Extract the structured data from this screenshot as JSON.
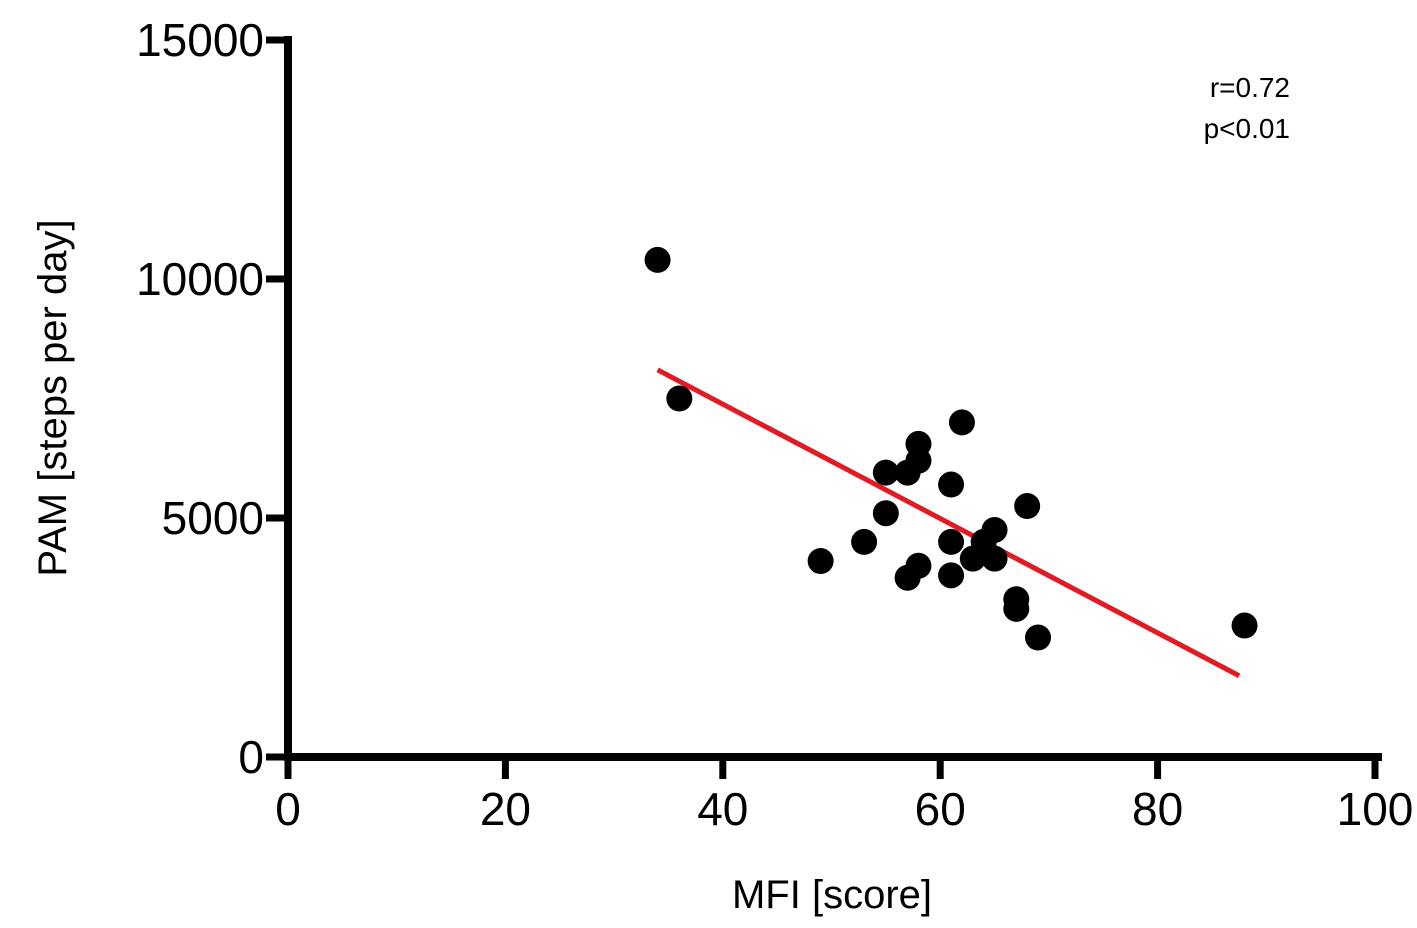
{
  "chart_data": {
    "type": "scatter",
    "title": "",
    "xlabel": "MFI [score]",
    "ylabel": "PAM [steps per day]",
    "xlim": [
      0,
      100
    ],
    "ylim": [
      0,
      15000
    ],
    "x_ticks": [
      "0",
      "20",
      "40",
      "60",
      "80",
      "100"
    ],
    "y_ticks": [
      "0",
      "5000",
      "10000",
      "15000"
    ],
    "grid": false,
    "legend": "none",
    "point_color": "#000000",
    "trend_color": "#e01b24",
    "points": [
      {
        "x": 34,
        "y": 10400
      },
      {
        "x": 36,
        "y": 7500
      },
      {
        "x": 49,
        "y": 4100
      },
      {
        "x": 53,
        "y": 4500
      },
      {
        "x": 55,
        "y": 5950
      },
      {
        "x": 55,
        "y": 5100
      },
      {
        "x": 57,
        "y": 5950
      },
      {
        "x": 57,
        "y": 3750
      },
      {
        "x": 58,
        "y": 6550
      },
      {
        "x": 58,
        "y": 6200
      },
      {
        "x": 58,
        "y": 4000
      },
      {
        "x": 61,
        "y": 5700
      },
      {
        "x": 61,
        "y": 4500
      },
      {
        "x": 61,
        "y": 3800
      },
      {
        "x": 62,
        "y": 7000
      },
      {
        "x": 63,
        "y": 4150
      },
      {
        "x": 64,
        "y": 4500
      },
      {
        "x": 65,
        "y": 4750
      },
      {
        "x": 65,
        "y": 4150
      },
      {
        "x": 67,
        "y": 3300
      },
      {
        "x": 67,
        "y": 3100
      },
      {
        "x": 68,
        "y": 5250
      },
      {
        "x": 69,
        "y": 2500
      },
      {
        "x": 88,
        "y": 2750
      }
    ],
    "trendline": {
      "x": [
        34,
        87.5
      ],
      "y": [
        8100,
        1700
      ]
    },
    "annotations": [
      "r=0.72",
      "p<0.01"
    ]
  }
}
